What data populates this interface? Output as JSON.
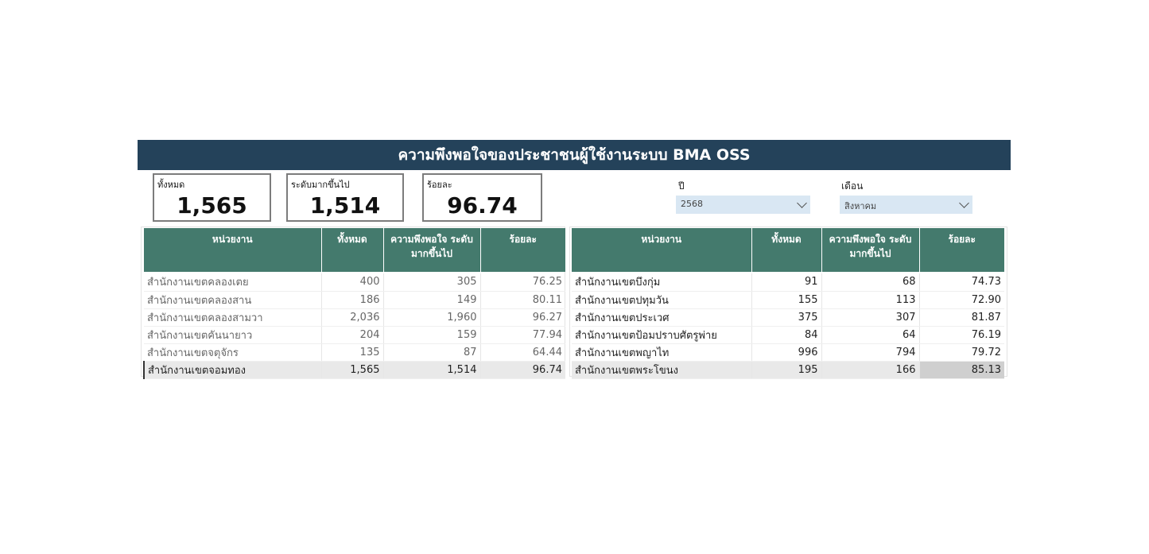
{
  "title": "ความพึงพอใจของประชาชนผู้ใช้งานระบบ BMA OSS",
  "kpis": [
    {
      "label": "ทั้งหมด",
      "value": "1,565"
    },
    {
      "label": "ระดับมากขึ้นไป",
      "value": "1,514"
    },
    {
      "label": "ร้อยละ",
      "value": "96.74"
    }
  ],
  "filters": {
    "year": {
      "label": "ปี",
      "value": "2568"
    },
    "month": {
      "label": "เดือน",
      "value": "สิงหาคม"
    }
  },
  "table_headers": [
    "หน่วยงาน",
    "ทั้งหมด",
    "ความพึงพอใจ ระดับมากขึ้นไป",
    "ร้อยละ"
  ],
  "left_table": {
    "rows": [
      [
        "สำนักงานเขตคลองเตย",
        "400",
        "305",
        "76.25"
      ],
      [
        "สำนักงานเขตคลองสาน",
        "186",
        "149",
        "80.11"
      ],
      [
        "สำนักงานเขตคลองสามวา",
        "2,036",
        "1,960",
        "96.27"
      ],
      [
        "สำนักงานเขตคันนายาว",
        "204",
        "159",
        "77.94"
      ],
      [
        "สำนักงานเขตจตุจักร",
        "135",
        "87",
        "64.44"
      ],
      [
        "สำนักงานเขตจอมทอง",
        "1,565",
        "1,514",
        "96.74"
      ]
    ]
  },
  "right_table": {
    "rows": [
      [
        "สำนักงานเขตบึงกุ่ม",
        "91",
        "68",
        "74.73"
      ],
      [
        "สำนักงานเขตปทุมวัน",
        "155",
        "113",
        "72.90"
      ],
      [
        "สำนักงานเขตประเวศ",
        "375",
        "307",
        "81.87"
      ],
      [
        "สำนักงานเขตป้อมปราบศัตรูพ่าย",
        "84",
        "64",
        "76.19"
      ],
      [
        "สำนักงานเขตพญาไท",
        "996",
        "794",
        "79.72"
      ],
      [
        "สำนักงานเขตพระโขนง",
        "195",
        "166",
        "85.13"
      ]
    ]
  },
  "colors": {
    "banner": "#24425a",
    "header": "#447a6d",
    "filter": "#d9e7f3"
  }
}
